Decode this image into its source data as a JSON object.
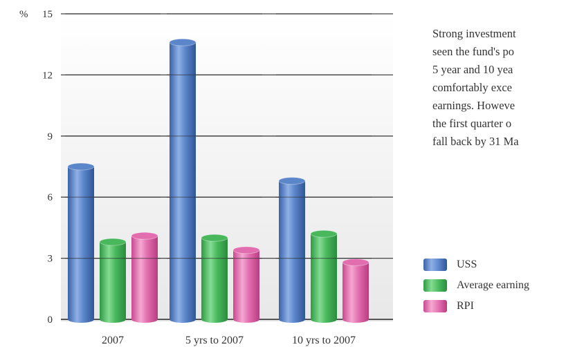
{
  "chart_data": {
    "type": "bar",
    "title": "",
    "xlabel": "",
    "ylabel": "%",
    "ylim": [
      0,
      15
    ],
    "yticks": [
      "0",
      "3",
      "6",
      "9",
      "12",
      "15"
    ],
    "categories": [
      "2007",
      "5 yrs to 2007",
      "10 yrs to 2007"
    ],
    "series": [
      {
        "name": "USS",
        "values": [
          7.5,
          13.6,
          6.8
        ],
        "color": "#5b86c9"
      },
      {
        "name": "Average earnings",
        "values": [
          3.8,
          4.0,
          4.2
        ],
        "color": "#49b85d"
      },
      {
        "name": "RPI",
        "values": [
          4.1,
          3.4,
          2.8
        ],
        "color": "#e26eb0"
      }
    ],
    "grid": true,
    "legend_position": "right"
  },
  "paragraph": {
    "lines": [
      "Strong investment",
      "seen the fund's po",
      "5 year and 10 yea",
      "comfortably exce",
      "earnings. Howeve",
      "the first quarter o",
      "fall back by 31 Ma"
    ]
  },
  "legend": {
    "items": [
      {
        "label": "USS",
        "color": "#5b86c9"
      },
      {
        "label": "Average earning",
        "color": "#49b85d"
      },
      {
        "label": "RPI",
        "color": "#e26eb0"
      }
    ]
  }
}
